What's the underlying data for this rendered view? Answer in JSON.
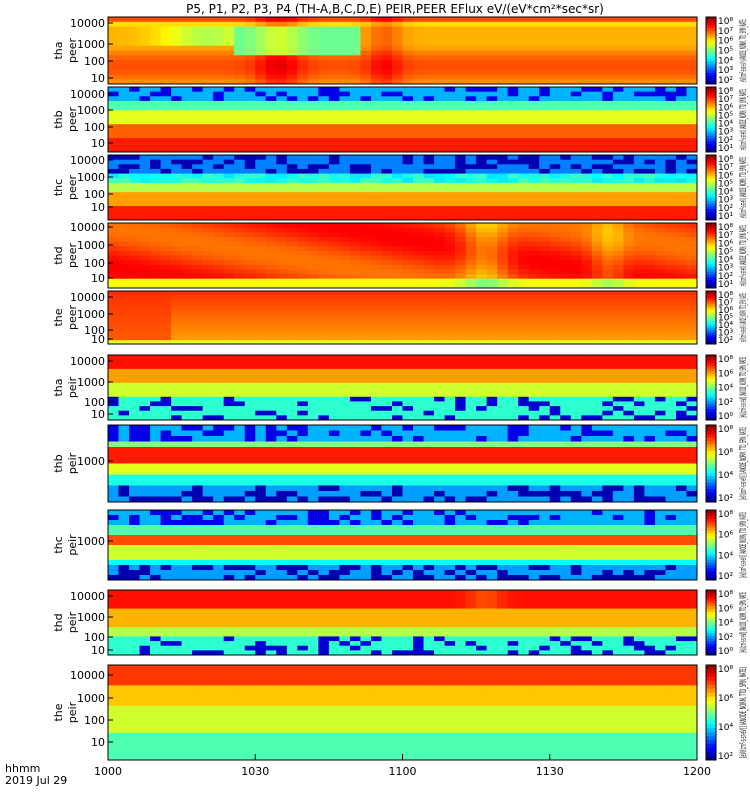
{
  "chart_data": {
    "type": "heatmap",
    "title": "P5, P1, P2, P3, P4 (TH-A,B,C,D,E) PEIR,PEER EFlux eV/(eV*cm²*sec*sr)",
    "time_axis": {
      "ticks": [
        "1000",
        "1030",
        "1100",
        "1130",
        "1200"
      ],
      "row_label_line1": "hhmm",
      "row_label_line2": "2019 Jul 29"
    },
    "colorbar": {
      "label_peer": "eV/(cm²-s-sr-eV) (ANODE_NORM, TTD_SPIN_RATE)",
      "label_peir": "[eV/(cm²-s-sr-eV)] (ANODE_NORM, TTD_SPIN_RATE)",
      "ticks_peer_a": [
        "10⁸",
        "10⁷",
        "10⁶",
        "10⁵",
        "10⁴",
        "10³",
        "10²"
      ],
      "ticks_peer_b": [
        "10⁸",
        "10⁷",
        "10⁶",
        "10⁵",
        "10⁴",
        "10³",
        "10²",
        "10¹"
      ],
      "ticks_peir": [
        "10⁸",
        "10⁶",
        "10⁴",
        "10²",
        "10⁰"
      ],
      "ticks_peir_short": [
        "10⁸",
        "10⁶",
        "10⁴",
        "10²"
      ]
    },
    "panels": [
      {
        "probe": "tha",
        "type": "peer",
        "yticks": [
          "10000",
          "1000",
          "100",
          "10"
        ],
        "profile": "tha_peer"
      },
      {
        "probe": "thb",
        "type": "peer",
        "yticks": [
          "10000",
          "1000",
          "100",
          "10"
        ],
        "profile": "thb_peer"
      },
      {
        "probe": "thc",
        "type": "peer",
        "yticks": [
          "10000",
          "1000",
          "100",
          "10"
        ],
        "profile": "thc_peer"
      },
      {
        "probe": "thd",
        "type": "peer",
        "yticks": [
          "10000",
          "1000",
          "100",
          "10"
        ],
        "profile": "thd_peer"
      },
      {
        "probe": "the",
        "type": "peer",
        "yticks": [
          "10000",
          "1000",
          "100",
          "10"
        ],
        "profile": "the_peer"
      },
      {
        "probe": "tha",
        "type": "peir",
        "yticks": [
          "10000",
          "1000",
          "100",
          "10"
        ],
        "profile": "tha_peir"
      },
      {
        "probe": "thb",
        "type": "peir",
        "yticks": [
          "1000"
        ],
        "profile": "thb_peir"
      },
      {
        "probe": "thc",
        "type": "peir",
        "yticks": [
          "1000"
        ],
        "profile": "thc_peir"
      },
      {
        "probe": "thd",
        "type": "peir",
        "yticks": [
          "10000",
          "1000",
          "100",
          "10"
        ],
        "profile": "thd_peir"
      },
      {
        "probe": "the",
        "type": "peir",
        "yticks": [
          "10000",
          "1000",
          "100",
          "10"
        ],
        "profile": "the_peir"
      }
    ]
  }
}
